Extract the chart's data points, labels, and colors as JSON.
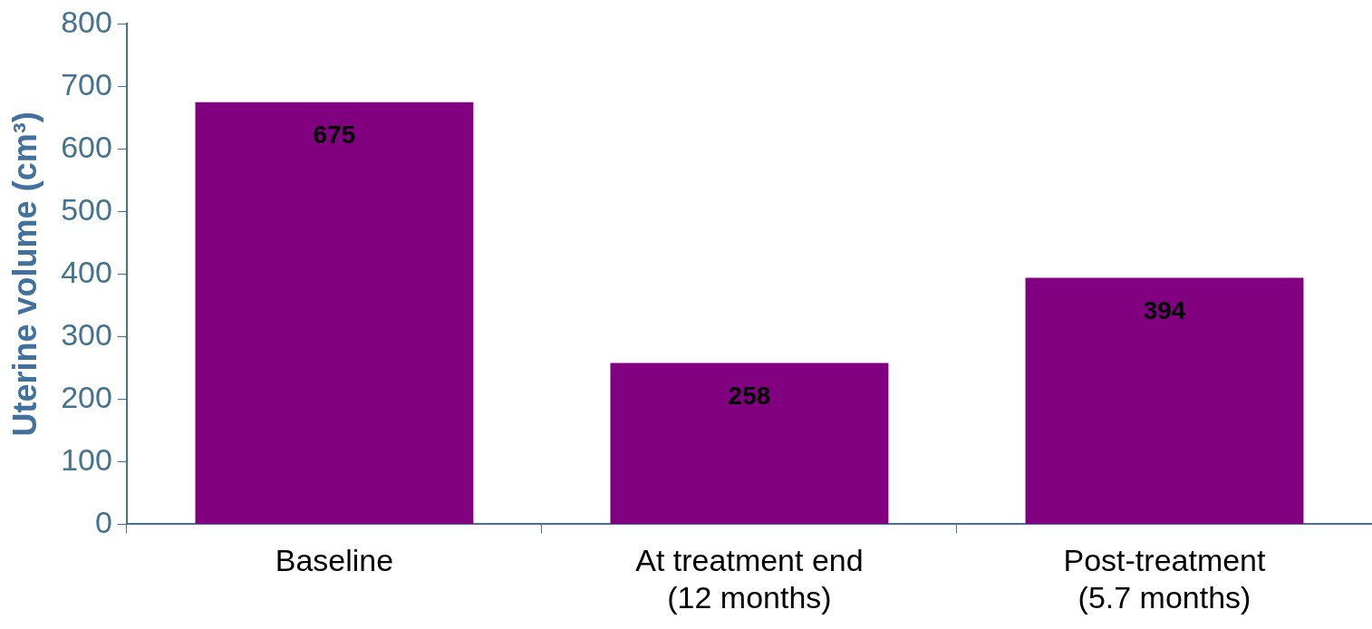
{
  "chart_data": {
    "type": "bar",
    "ylabel": "Uterine volume (cm³)",
    "categories": [
      "Baseline",
      "At treatment end (12 months)",
      "Post-treatment (5.7 months)"
    ],
    "values": [
      675,
      258,
      394
    ],
    "color": "#800080",
    "ylim": [
      0,
      800
    ],
    "yticks": [
      0,
      100,
      200,
      300,
      400,
      500,
      600,
      700,
      800
    ],
    "data_labels": true,
    "grid": false,
    "legend": false
  }
}
